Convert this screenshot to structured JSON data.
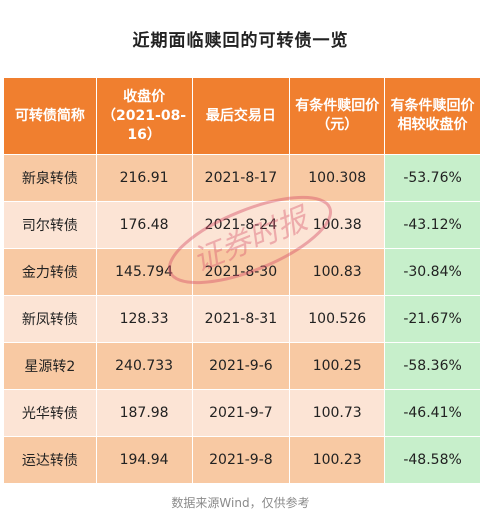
{
  "title": "近期面临赎回的可转债一览",
  "headers": [
    "可转债简称",
    "收盘价（2021-08-16）",
    "最后交易日",
    "有条件赎回价（元）",
    "有条件赎回价相较收盘价"
  ],
  "rows": [
    [
      "新泉转债",
      "216.91",
      "2021-8-17",
      "100.308",
      "-53.76%"
    ],
    [
      "司尔转债",
      "176.48",
      "2021-8-24",
      "100.38",
      "-43.12%"
    ],
    [
      "金力转债",
      "145.794",
      "2021-8-30",
      "100.83",
      "-30.84%"
    ],
    [
      "新凤转债",
      "128.33",
      "2021-8-31",
      "100.526",
      "-21.67%"
    ],
    [
      "星源转2",
      "240.733",
      "2021-9-6",
      "100.25",
      "-58.36%"
    ],
    [
      "光华转债",
      "187.98",
      "2021-9-7",
      "100.73",
      "-46.41%"
    ],
    [
      "运达转债",
      "194.94",
      "2021-9-8",
      "100.23",
      "-48.58%"
    ]
  ],
  "watermark": "证券时报",
  "footer": "数据来源Wind，仅供参考",
  "colors": {
    "header": "#f07f2f",
    "row_odd": "#f8c9a3",
    "row_even": "#fce4d5",
    "last_col": "#c7efcb"
  }
}
